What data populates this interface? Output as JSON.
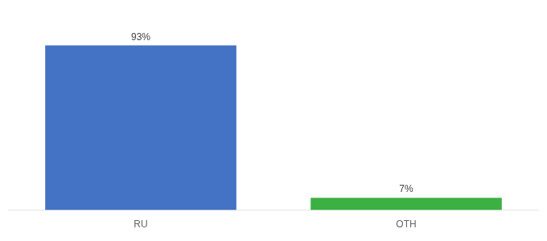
{
  "chart_data": {
    "type": "bar",
    "categories": [
      "RU",
      "OTH"
    ],
    "values": [
      93,
      7
    ],
    "value_labels": [
      "93%",
      "7%"
    ],
    "data_labels": true,
    "colors": [
      "#4472c4",
      "#3cb043"
    ],
    "ylim": [
      0,
      105
    ],
    "tick_labels": "x",
    "grid": false
  }
}
